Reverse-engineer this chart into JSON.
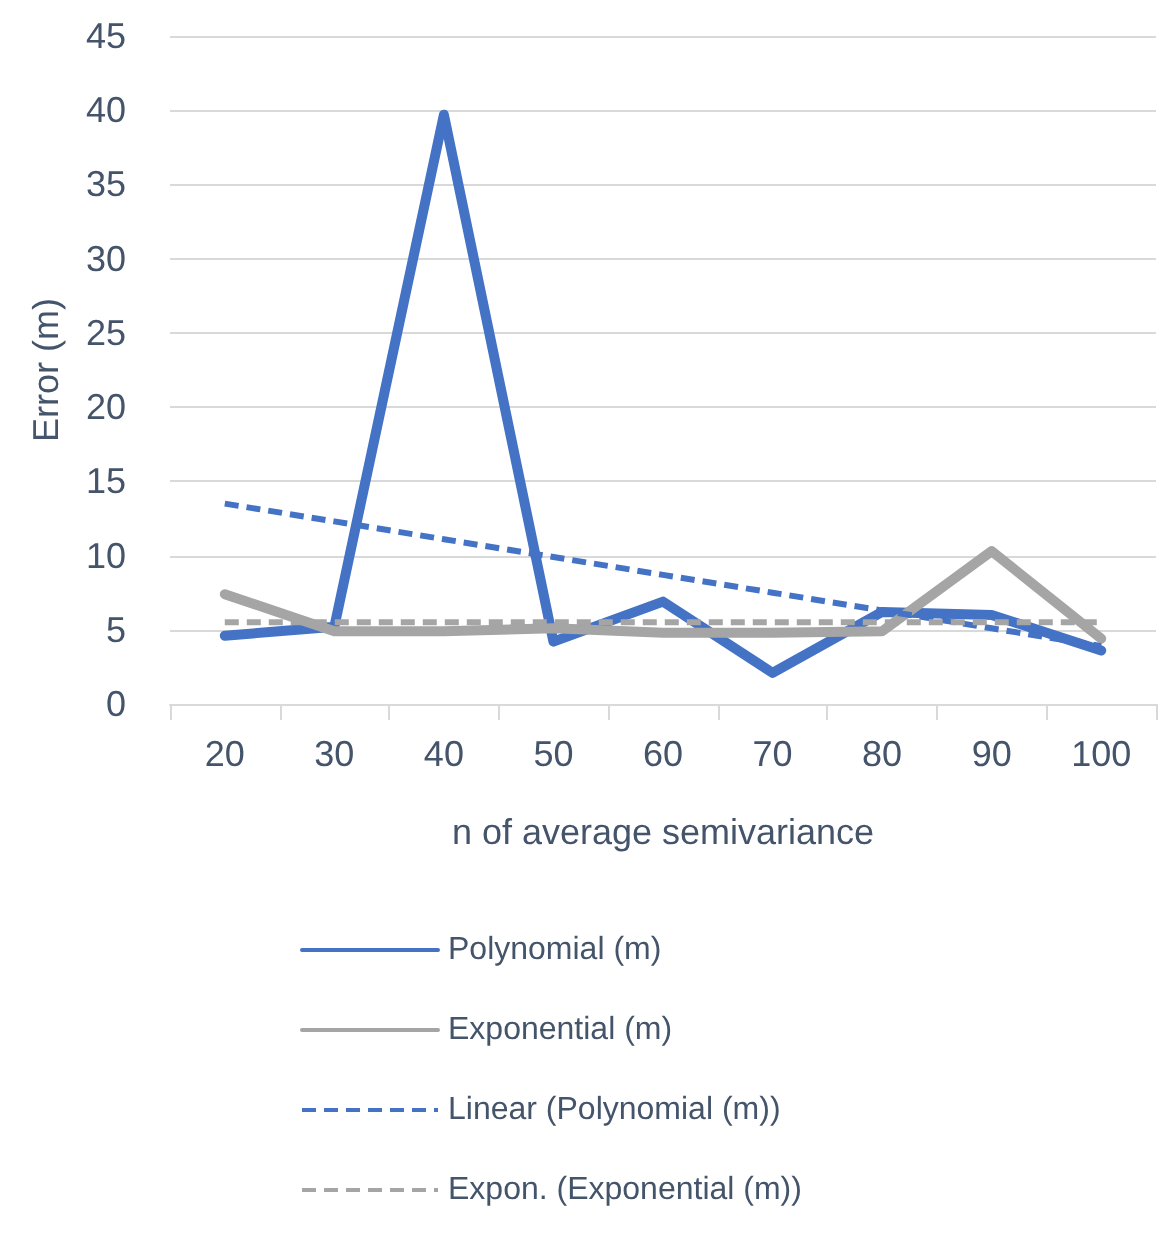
{
  "chart_data": {
    "type": "line",
    "xlabel": "n of average semivariance",
    "ylabel": "Error (m)",
    "categories": [
      "20",
      "30",
      "40",
      "50",
      "60",
      "70",
      "80",
      "90",
      "100"
    ],
    "series": [
      {
        "name": "Polynomial (m)",
        "color": "#4472c4",
        "line_style": "solid",
        "values": [
          4.6,
          5.2,
          39.7,
          4.2,
          6.9,
          2.1,
          6.2,
          6.0,
          3.6
        ]
      },
      {
        "name": "Exponential (m)",
        "color": "#a5a5a5",
        "line_style": "solid",
        "values": [
          7.4,
          4.9,
          4.9,
          5.1,
          4.8,
          4.8,
          4.9,
          10.3,
          4.4
        ]
      },
      {
        "name": "Linear (Polynomial (m))",
        "color": "#4472c4",
        "line_style": "dashed",
        "values": [
          13.5,
          12.3,
          11.1,
          9.9,
          8.7,
          7.5,
          6.3,
          5.1,
          3.9
        ]
      },
      {
        "name": "Expon. (Exponential (m))",
        "color": "#a5a5a5",
        "line_style": "dashed",
        "values": [
          5.5,
          5.5,
          5.5,
          5.5,
          5.5,
          5.5,
          5.5,
          5.5,
          5.5
        ]
      }
    ],
    "ylim": [
      0,
      45
    ],
    "yticks": [
      0,
      5,
      10,
      15,
      20,
      25,
      30,
      35,
      40,
      45
    ],
    "grid": "y",
    "legend": "bottom",
    "marker": "none"
  }
}
